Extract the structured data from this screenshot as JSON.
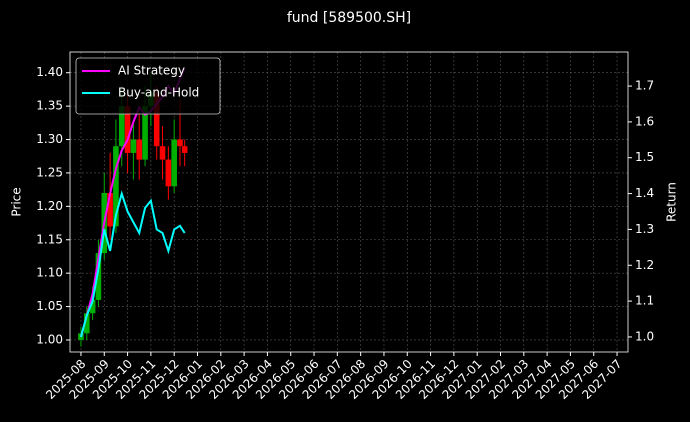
{
  "chart_data": {
    "type": "candlestick",
    "title": "fund [589500.SH]",
    "y_label": "Price",
    "y2_label": "Return",
    "x": [
      0,
      0.25,
      0.5,
      0.75,
      1,
      1.25,
      1.5,
      1.75,
      2,
      2.25,
      2.5,
      2.75,
      3,
      3.25,
      3.5,
      3.75,
      4,
      4.25,
      4.45
    ],
    "open": [
      1.0,
      1.01,
      1.04,
      1.06,
      1.13,
      1.22,
      1.17,
      1.29,
      1.35,
      1.28,
      1.3,
      1.27,
      1.35,
      1.37,
      1.29,
      1.27,
      1.23,
      1.3,
      1.29
    ],
    "high": [
      1.02,
      1.05,
      1.08,
      1.15,
      1.25,
      1.28,
      1.33,
      1.38,
      1.37,
      1.33,
      1.34,
      1.38,
      1.4,
      1.38,
      1.32,
      1.29,
      1.33,
      1.36,
      1.3
    ],
    "low": [
      0.99,
      1.0,
      1.03,
      1.05,
      1.12,
      1.15,
      1.16,
      1.26,
      1.25,
      1.24,
      1.24,
      1.26,
      1.32,
      1.27,
      1.24,
      1.21,
      1.22,
      1.26,
      1.26
    ],
    "close": [
      1.01,
      1.04,
      1.06,
      1.13,
      1.22,
      1.17,
      1.29,
      1.35,
      1.28,
      1.3,
      1.27,
      1.35,
      1.37,
      1.29,
      1.27,
      1.23,
      1.3,
      1.29,
      1.28
    ],
    "up_color": "#00b000",
    "down_color": "#ff0000",
    "series": [
      {
        "name": "AI Strategy",
        "color": "#ff00ff",
        "axis": "y2",
        "values": [
          1.0,
          1.06,
          1.12,
          1.22,
          1.32,
          1.4,
          1.47,
          1.52,
          1.55,
          1.6,
          1.64,
          1.62,
          1.63,
          1.65,
          1.67,
          1.7,
          1.68,
          1.72,
          1.75
        ]
      },
      {
        "name": "Buy-and-Hold",
        "color": "#00ffff",
        "axis": "y2",
        "values": [
          1.0,
          1.06,
          1.1,
          1.19,
          1.3,
          1.24,
          1.34,
          1.4,
          1.35,
          1.32,
          1.29,
          1.36,
          1.38,
          1.3,
          1.29,
          1.24,
          1.3,
          1.31,
          1.29
        ]
      }
    ],
    "xlim": [
      -0.47,
      23.47
    ],
    "xticks": [
      {
        "value": 0,
        "label": "2025-08"
      },
      {
        "value": 1,
        "label": "2025-09"
      },
      {
        "value": 2,
        "label": "2025-10"
      },
      {
        "value": 3,
        "label": "2025-11"
      },
      {
        "value": 4,
        "label": "2025-12"
      },
      {
        "value": 5,
        "label": "2026-01"
      },
      {
        "value": 6,
        "label": "2026-02"
      },
      {
        "value": 7,
        "label": "2026-03"
      },
      {
        "value": 8,
        "label": "2026-04"
      },
      {
        "value": 9,
        "label": "2026-05"
      },
      {
        "value": 10,
        "label": "2026-06"
      },
      {
        "value": 11,
        "label": "2026-07"
      },
      {
        "value": 12,
        "label": "2026-08"
      },
      {
        "value": 13,
        "label": "2026-09"
      },
      {
        "value": 14,
        "label": "2026-10"
      },
      {
        "value": 15,
        "label": "2026-11"
      },
      {
        "value": 16,
        "label": "2026-12"
      },
      {
        "value": 17,
        "label": "2027-01"
      },
      {
        "value": 18,
        "label": "2027-02"
      },
      {
        "value": 19,
        "label": "2027-03"
      },
      {
        "value": 20,
        "label": "2027-04"
      },
      {
        "value": 21,
        "label": "2027-05"
      },
      {
        "value": 22,
        "label": "2027-06"
      },
      {
        "value": 23,
        "label": "2027-07"
      }
    ],
    "ylim": [
      0.982,
      1.431
    ],
    "yticks": [
      {
        "value": 1.0,
        "label": "1.00"
      },
      1.05,
      {
        "value": 1.1,
        "label": "1.10"
      },
      1.15,
      {
        "value": 1.2,
        "label": "1.20"
      },
      1.25,
      {
        "value": 1.3,
        "label": "1.30"
      },
      1.35,
      {
        "value": 1.4,
        "label": "1.40"
      }
    ],
    "y2lim": [
      0.958,
      1.795
    ],
    "y2ticks": [
      {
        "value": 1.0,
        "label": "1.0"
      },
      1.1,
      1.2,
      1.3,
      1.4,
      1.5,
      1.6,
      1.7
    ],
    "grid": true,
    "legend": "upper left"
  }
}
